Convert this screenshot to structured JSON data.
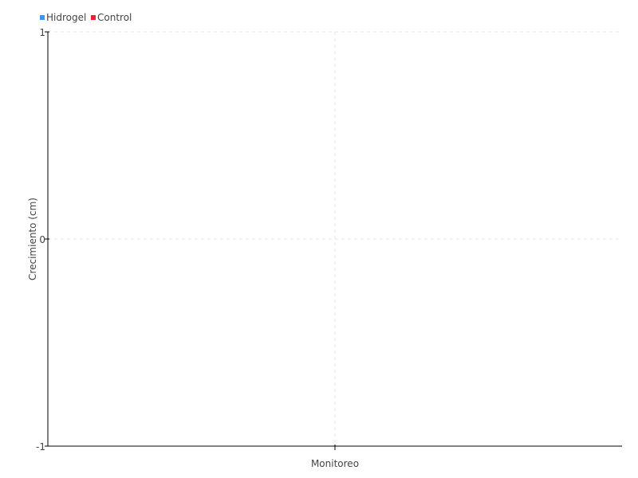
{
  "chart_data": {
    "type": "line",
    "title": "",
    "xlabel": "Monitoreo",
    "ylabel": "Crecimiento (cm)",
    "ylim": [
      -1,
      1
    ],
    "yticks": [
      "1",
      "0",
      "-1"
    ],
    "x": [],
    "grid": true,
    "legend_position": "top-left",
    "series": [
      {
        "name": "Hidrogel",
        "color": "#3399ff",
        "values": []
      },
      {
        "name": "Control",
        "color": "#ff1a33",
        "values": []
      }
    ]
  }
}
